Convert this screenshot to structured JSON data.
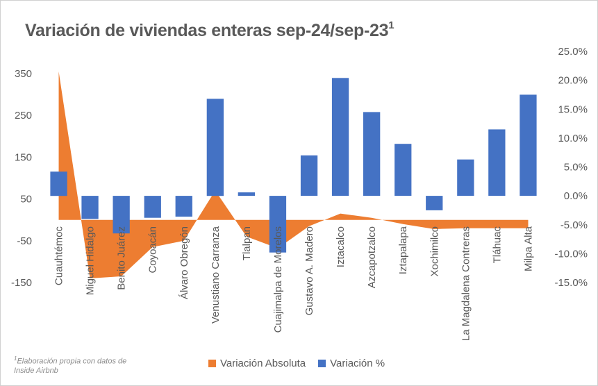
{
  "chart_data": {
    "type": "bar+area",
    "title": "Variación de viviendas enteras sep-24/sep-23",
    "title_sup": "1",
    "categories": [
      "Cuauhtémoc",
      "Miguel Hidalgo",
      "Benito Juárez",
      "Coyoacán",
      "Álvaro Obregón",
      "Venustiano Carranza",
      "Tlalpan",
      "Cuajimalpa de Morelos",
      "Gustavo A. Madero",
      "Iztacalco",
      "Azcapotzalco",
      "Iztapalapa",
      "Xochimilco",
      "La Magdalena Contreras",
      "Tláhuac",
      "Milpa Alta"
    ],
    "series": [
      {
        "name": "Variación Absoluta",
        "type": "area",
        "axis": "left",
        "color": "#ED7D31",
        "values": [
          355,
          -140,
          -135,
          -65,
          -50,
          70,
          -40,
          -68,
          -15,
          15,
          5,
          -10,
          -22,
          -20,
          -20,
          -20
        ]
      },
      {
        "name": "Variación %",
        "type": "bar",
        "axis": "right",
        "color": "#4472C4",
        "values": [
          4.2,
          -4.0,
          -6.5,
          -3.8,
          -3.6,
          16.8,
          0.6,
          -9.8,
          7.0,
          20.4,
          14.5,
          9.0,
          -2.5,
          6.3,
          11.5,
          17.5
        ]
      }
    ],
    "y_left": {
      "min": -150,
      "max": 350,
      "ticks": [
        350,
        250,
        150,
        50,
        -50,
        -150
      ]
    },
    "y_right": {
      "min": -15,
      "max": 25,
      "ticks": [
        "25.0%",
        "20.0%",
        "15.0%",
        "10.0%",
        "5.0%",
        "0.0%",
        "-5.0%",
        "-10.0%",
        "-15.0%"
      ],
      "tick_values": [
        25,
        20,
        15,
        10,
        5,
        0,
        -5,
        -10,
        -15
      ]
    },
    "legend_position": "bottom",
    "grid": false
  },
  "footnote": {
    "sup": "1",
    "text": "Elaboración propia con datos de Inside Airbnb"
  }
}
